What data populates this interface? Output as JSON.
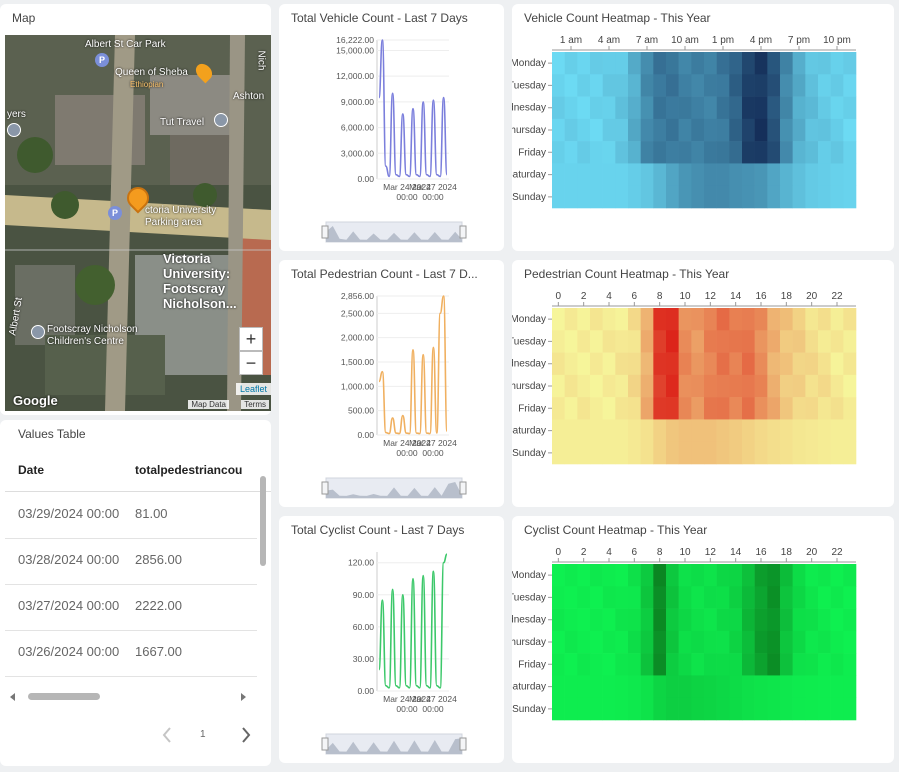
{
  "map": {
    "title": "Map",
    "labels": [
      "Albert St Car Park",
      "Queen of Sheba",
      "Ethiopian",
      "Ashton",
      "Nich",
      "yers",
      "Tut Travel",
      "ctoria University",
      "Parking area",
      "Victoria",
      "University:",
      "Footscray",
      "Nicholson...",
      "Albert St",
      "Footscray Nicholson",
      "Children's Centre",
      "Google"
    ],
    "zoom_in": "+",
    "zoom_out": "−",
    "leaflet": "Leaflet",
    "attribution_data": "Map Data",
    "attribution_terms": "Terms"
  },
  "table": {
    "title": "Values Table",
    "columns": [
      "Date",
      "totalpedestriancou"
    ],
    "rows": [
      [
        "03/29/2024 00:00",
        "81.00"
      ],
      [
        "03/28/2024 00:00",
        "2856.00"
      ],
      [
        "03/27/2024 00:00",
        "2222.00"
      ],
      [
        "03/26/2024 00:00",
        "1667.00"
      ]
    ],
    "page": "1",
    "prev_icon": "chevron-left-icon",
    "next_icon": "chevron-right-icon"
  },
  "chart_data": [
    {
      "type": "line",
      "title": "Total Vehicle Count - Last 7 Days",
      "color": "#7b7fdc",
      "ylim": [
        0,
        16222
      ],
      "yticks": [
        "0.00",
        "3,000.00",
        "6,000.00",
        "9,000.00",
        "12,000.00",
        "15,000.00",
        "16,222.00"
      ],
      "ytick_values": [
        0,
        3000,
        6000,
        9000,
        12000,
        15000,
        16222
      ],
      "xticks": [
        "Mar 24 2024 00:00",
        "Mar 27 2024 00:00"
      ],
      "values": [
        9500,
        16222,
        1500,
        300,
        10000,
        500,
        300,
        7600,
        500,
        300,
        8200,
        500,
        300,
        9000,
        500,
        300,
        9200,
        500,
        300,
        9500,
        500
      ]
    },
    {
      "type": "line",
      "title": "Total Pedestrian Count - Last 7 D...",
      "color": "#f0b060",
      "ylim": [
        0,
        2856
      ],
      "yticks": [
        "0.00",
        "500.00",
        "1,000.00",
        "1,500.00",
        "2,000.00",
        "2,500.00",
        "2,856.00"
      ],
      "ytick_values": [
        0,
        500,
        1000,
        1500,
        2000,
        2500,
        2856
      ],
      "xticks": [
        "Mar 24 2024 00:00",
        "Mar 27 2024 00:00"
      ],
      "values": [
        1100,
        1300,
        50,
        30,
        350,
        40,
        30,
        400,
        40,
        30,
        1750,
        40,
        30,
        1650,
        40,
        30,
        1800,
        40,
        2500,
        2856,
        80
      ]
    },
    {
      "type": "line",
      "title": "Total Cyclist Count - Last 7 Days",
      "color": "#3cc86a",
      "ylim": [
        0,
        130
      ],
      "yticks": [
        "0.00",
        "30.00",
        "60.00",
        "90.00",
        "120.00"
      ],
      "ytick_values": [
        0,
        30,
        60,
        90,
        120
      ],
      "xticks": [
        "Mar 24 2024 00:00",
        "Mar 27 2024 00:00"
      ],
      "values": [
        20,
        85,
        5,
        3,
        95,
        5,
        3,
        90,
        5,
        3,
        105,
        5,
        3,
        108,
        5,
        3,
        112,
        5,
        3,
        120,
        128
      ]
    },
    {
      "type": "heatmap",
      "title": "Vehicle Count Heatmap - This Year",
      "xticks": [
        "1 am",
        "4 am",
        "7 am",
        "10 am",
        "1 pm",
        "4 pm",
        "7 pm",
        "10 pm"
      ],
      "xtick_hours": [
        1,
        4,
        7,
        10,
        13,
        16,
        19,
        22
      ],
      "rows": [
        "Monday",
        "Tuesday",
        "Wednesday",
        "Thursday",
        "Friday",
        "Saturday",
        "Sunday"
      ],
      "color_low": "#6ddcf5",
      "color_high": "#0f2450",
      "intensity_by_hour_weekday": [
        0.05,
        0.05,
        0.05,
        0.05,
        0.08,
        0.12,
        0.25,
        0.45,
        0.55,
        0.55,
        0.5,
        0.5,
        0.5,
        0.55,
        0.65,
        0.85,
        0.9,
        0.75,
        0.45,
        0.25,
        0.15,
        0.1,
        0.08,
        0.05
      ],
      "intensity_by_hour_weekend": [
        0.05,
        0.05,
        0.05,
        0.05,
        0.05,
        0.05,
        0.08,
        0.12,
        0.2,
        0.3,
        0.38,
        0.42,
        0.45,
        0.45,
        0.42,
        0.4,
        0.38,
        0.3,
        0.22,
        0.15,
        0.1,
        0.08,
        0.06,
        0.05
      ]
    },
    {
      "type": "heatmap",
      "title": "Pedestrian Count Heatmap - This Year",
      "xticks": [
        "0",
        "2",
        "4",
        "6",
        "8",
        "10",
        "12",
        "14",
        "16",
        "18",
        "20",
        "22"
      ],
      "xtick_hours": [
        0,
        2,
        4,
        6,
        8,
        10,
        12,
        14,
        16,
        18,
        20,
        22
      ],
      "rows": [
        "Monday",
        "Tuesday",
        "Wednesday",
        "Thursday",
        "Friday",
        "Saturday",
        "Sunday"
      ],
      "color_low": "#f6f59a",
      "color_high": "#d90a0a",
      "intensity_by_hour_weekday": [
        0.03,
        0.03,
        0.03,
        0.03,
        0.03,
        0.05,
        0.1,
        0.3,
        0.8,
        0.85,
        0.45,
        0.4,
        0.5,
        0.55,
        0.5,
        0.55,
        0.45,
        0.3,
        0.2,
        0.15,
        0.1,
        0.08,
        0.05,
        0.04
      ],
      "intensity_by_hour_weekend": [
        0.03,
        0.03,
        0.03,
        0.03,
        0.03,
        0.03,
        0.05,
        0.08,
        0.15,
        0.2,
        0.22,
        0.22,
        0.22,
        0.2,
        0.18,
        0.15,
        0.12,
        0.1,
        0.08,
        0.06,
        0.05,
        0.04,
        0.03,
        0.03
      ]
    },
    {
      "type": "heatmap",
      "title": "Cyclist Count Heatmap - This Year",
      "xticks": [
        "0",
        "2",
        "4",
        "6",
        "8",
        "10",
        "12",
        "14",
        "16",
        "18",
        "20",
        "22"
      ],
      "xtick_hours": [
        0,
        2,
        4,
        6,
        8,
        10,
        12,
        14,
        16,
        18,
        20,
        22
      ],
      "rows": [
        "Monday",
        "Tuesday",
        "Wednesday",
        "Thursday",
        "Friday",
        "Saturday",
        "Sunday"
      ],
      "color_low": "#0ef050",
      "color_high": "#0a6a16",
      "intensity_by_hour_weekday": [
        0.02,
        0.02,
        0.02,
        0.02,
        0.03,
        0.05,
        0.1,
        0.3,
        0.75,
        0.3,
        0.15,
        0.12,
        0.12,
        0.15,
        0.2,
        0.4,
        0.6,
        0.7,
        0.35,
        0.15,
        0.08,
        0.05,
        0.03,
        0.02
      ],
      "intensity_by_hour_weekend": [
        0.02,
        0.02,
        0.02,
        0.02,
        0.02,
        0.03,
        0.05,
        0.1,
        0.2,
        0.25,
        0.25,
        0.22,
        0.2,
        0.18,
        0.15,
        0.12,
        0.1,
        0.08,
        0.06,
        0.04,
        0.03,
        0.02,
        0.02,
        0.02
      ]
    }
  ]
}
